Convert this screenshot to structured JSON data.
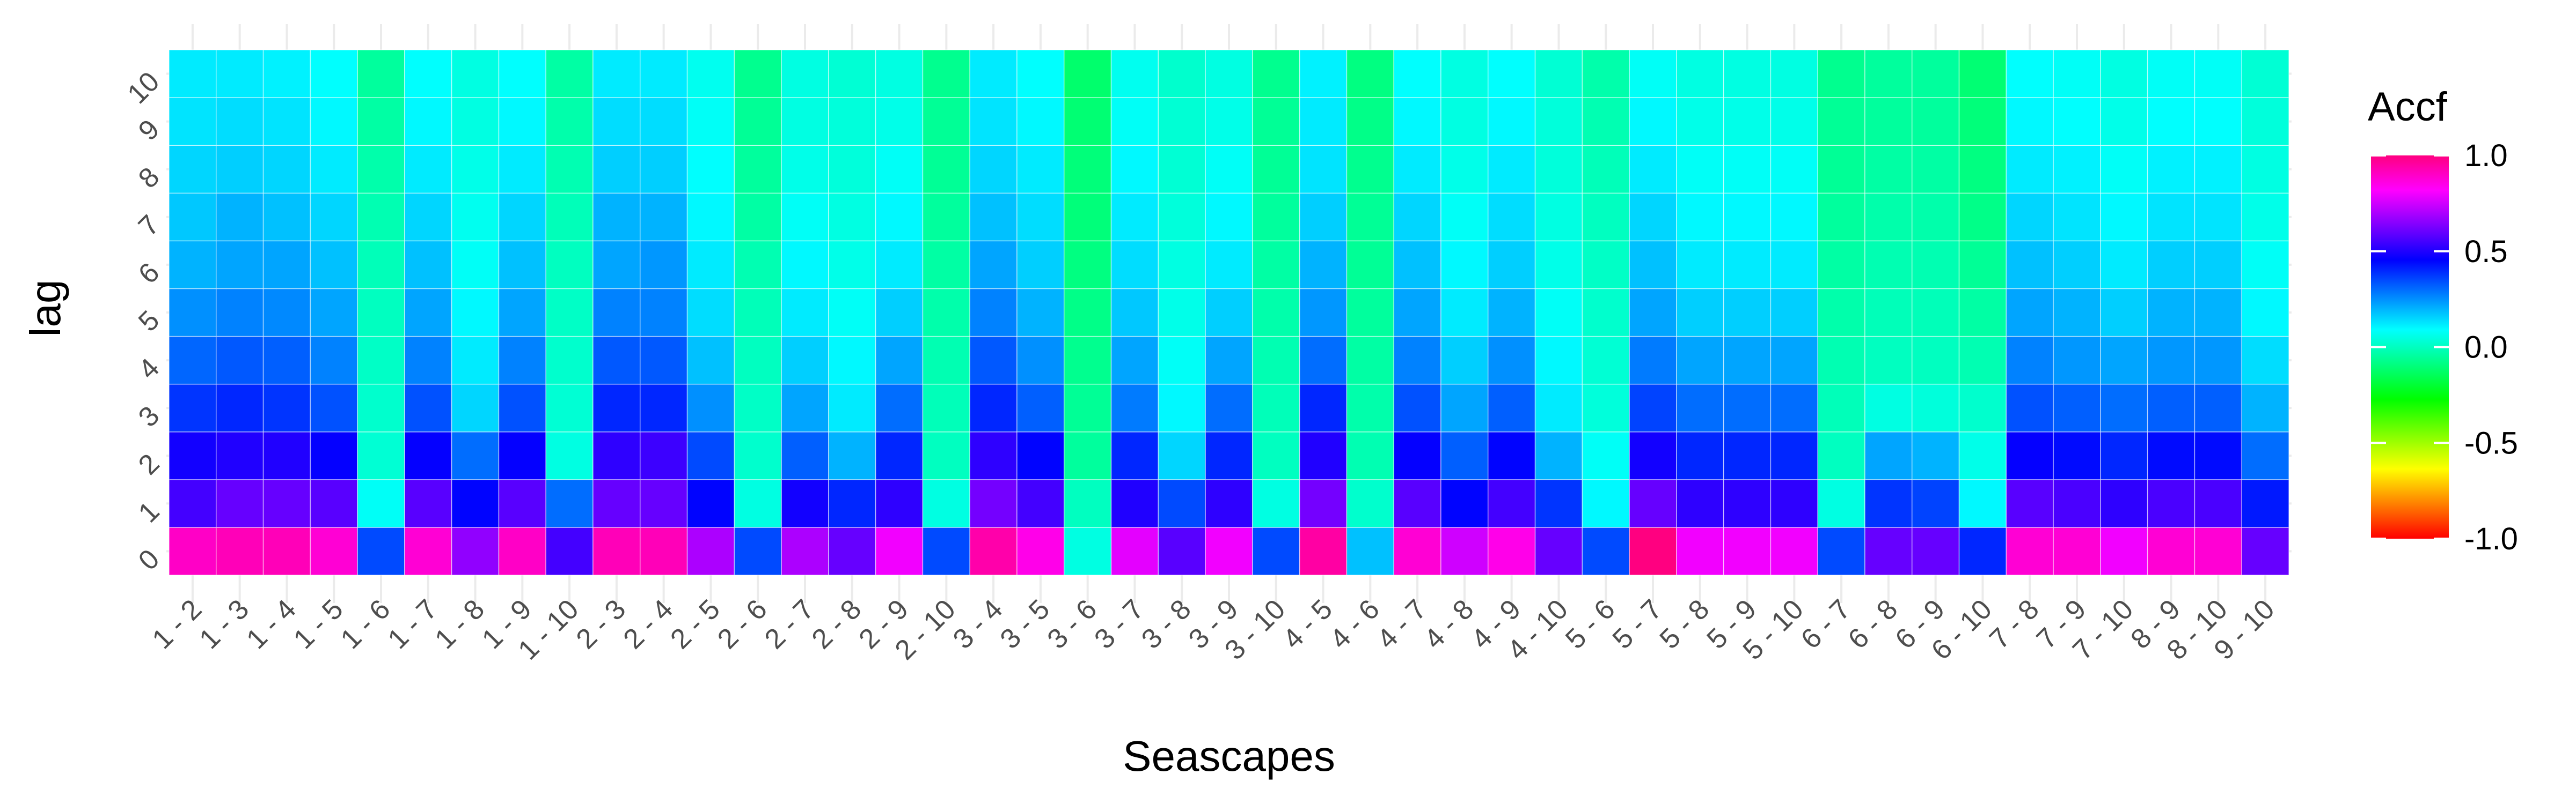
{
  "chart_data": {
    "type": "heatmap",
    "xlabel": "Seascapes",
    "ylabel": "lag",
    "x": [
      "1 - 2",
      "1 - 3",
      "1 - 4",
      "1 - 5",
      "1 - 6",
      "1 - 7",
      "1 - 8",
      "1 - 9",
      "1 - 10",
      "2 - 3",
      "2 - 4",
      "2 - 5",
      "2 - 6",
      "2 - 7",
      "2 - 8",
      "2 - 9",
      "2 - 10",
      "3 - 4",
      "3 - 5",
      "3 - 6",
      "3 - 7",
      "3 - 8",
      "3 - 9",
      "3 - 10",
      "4 - 5",
      "4 - 6",
      "4 - 7",
      "4 - 8",
      "4 - 9",
      "4 - 10",
      "5 - 6",
      "5 - 7",
      "5 - 8",
      "5 - 9",
      "5 - 10",
      "6 - 7",
      "6 - 8",
      "6 - 9",
      "6 - 10",
      "7 - 8",
      "7 - 9",
      "7 - 10",
      "8 - 9",
      "8 - 10",
      "9 - 10"
    ],
    "y": [
      "0",
      "1",
      "2",
      "3",
      "4",
      "5",
      "6",
      "7",
      "8",
      "9",
      "10"
    ],
    "z": [
      [
        0.9,
        0.55,
        0.48,
        0.38,
        0.31,
        0.25,
        0.2,
        0.17,
        0.15,
        0.13,
        0.12
      ],
      [
        0.92,
        0.6,
        0.5,
        0.4,
        0.33,
        0.27,
        0.22,
        0.2,
        0.16,
        0.14,
        0.12
      ],
      [
        0.92,
        0.6,
        0.5,
        0.38,
        0.32,
        0.26,
        0.22,
        0.18,
        0.15,
        0.13,
        0.11
      ],
      [
        0.88,
        0.58,
        0.46,
        0.34,
        0.27,
        0.22,
        0.18,
        0.15,
        0.12,
        0.1,
        0.09
      ],
      [
        0.35,
        0.08,
        0.03,
        0.02,
        0.01,
        0.0,
        -0.01,
        -0.02,
        -0.03,
        -0.04,
        -0.05
      ],
      [
        0.88,
        0.58,
        0.46,
        0.34,
        0.27,
        0.22,
        0.18,
        0.15,
        0.12,
        0.1,
        0.09
      ],
      [
        0.66,
        0.45,
        0.3,
        0.15,
        0.12,
        0.1,
        0.08,
        0.07,
        0.06,
        0.05,
        0.05
      ],
      [
        0.9,
        0.58,
        0.46,
        0.34,
        0.27,
        0.22,
        0.18,
        0.15,
        0.12,
        0.1,
        0.09
      ],
      [
        0.55,
        0.3,
        0.05,
        0.03,
        0.02,
        0.01,
        0.0,
        -0.01,
        -0.02,
        -0.03,
        -0.04
      ],
      [
        0.92,
        0.6,
        0.52,
        0.4,
        0.33,
        0.27,
        0.22,
        0.2,
        0.16,
        0.14,
        0.12
      ],
      [
        0.92,
        0.6,
        0.54,
        0.4,
        0.33,
        0.27,
        0.24,
        0.2,
        0.16,
        0.14,
        0.12
      ],
      [
        0.7,
        0.45,
        0.35,
        0.25,
        0.18,
        0.14,
        0.12,
        0.1,
        0.09,
        0.08,
        0.07
      ],
      [
        0.35,
        0.05,
        0.02,
        0.01,
        0.0,
        -0.01,
        -0.02,
        -0.04,
        -0.05,
        -0.06,
        -0.07
      ],
      [
        0.7,
        0.48,
        0.32,
        0.22,
        0.16,
        0.12,
        0.1,
        0.08,
        0.06,
        0.05,
        0.05
      ],
      [
        0.6,
        0.4,
        0.2,
        0.12,
        0.1,
        0.08,
        0.06,
        0.05,
        0.04,
        0.04,
        0.03
      ],
      [
        0.8,
        0.52,
        0.4,
        0.3,
        0.22,
        0.16,
        0.12,
        0.1,
        0.08,
        0.06,
        0.05
      ],
      [
        0.35,
        0.05,
        0.0,
        -0.01,
        -0.02,
        -0.03,
        -0.04,
        -0.05,
        -0.06,
        -0.06,
        -0.07
      ],
      [
        0.94,
        0.62,
        0.52,
        0.4,
        0.33,
        0.27,
        0.22,
        0.18,
        0.15,
        0.13,
        0.12
      ],
      [
        0.85,
        0.55,
        0.45,
        0.32,
        0.25,
        0.2,
        0.16,
        0.14,
        0.12,
        0.1,
        0.09
      ],
      [
        0.05,
        0.0,
        -0.05,
        -0.06,
        -0.07,
        -0.08,
        -0.09,
        -0.1,
        -0.1,
        -0.11,
        -0.12
      ],
      [
        0.78,
        0.5,
        0.4,
        0.28,
        0.22,
        0.17,
        0.14,
        0.12,
        0.1,
        0.08,
        0.07
      ],
      [
        0.58,
        0.35,
        0.15,
        0.1,
        0.08,
        0.06,
        0.05,
        0.04,
        0.03,
        0.03,
        0.02
      ],
      [
        0.8,
        0.52,
        0.4,
        0.3,
        0.22,
        0.16,
        0.12,
        0.1,
        0.08,
        0.06,
        0.05
      ],
      [
        0.35,
        0.05,
        0.0,
        -0.01,
        -0.02,
        -0.03,
        -0.04,
        -0.05,
        -0.06,
        -0.06,
        -0.07
      ],
      [
        0.95,
        0.62,
        0.5,
        0.4,
        0.3,
        0.24,
        0.2,
        0.16,
        0.13,
        0.12,
        0.11
      ],
      [
        0.18,
        0.02,
        -0.02,
        -0.03,
        -0.04,
        -0.05,
        -0.06,
        -0.06,
        -0.07,
        -0.08,
        -0.09
      ],
      [
        0.88,
        0.58,
        0.46,
        0.34,
        0.27,
        0.22,
        0.18,
        0.15,
        0.12,
        0.1,
        0.09
      ],
      [
        0.75,
        0.45,
        0.32,
        0.22,
        0.16,
        0.12,
        0.1,
        0.08,
        0.06,
        0.05,
        0.05
      ],
      [
        0.85,
        0.55,
        0.45,
        0.32,
        0.25,
        0.2,
        0.16,
        0.14,
        0.12,
        0.1,
        0.09
      ],
      [
        0.6,
        0.38,
        0.2,
        0.12,
        0.1,
        0.08,
        0.06,
        0.05,
        0.04,
        0.04,
        0.03
      ],
      [
        0.35,
        0.1,
        0.08,
        0.04,
        0.03,
        0.02,
        0.01,
        0.0,
        -0.01,
        -0.02,
        -0.03
      ],
      [
        1.0,
        0.6,
        0.48,
        0.36,
        0.28,
        0.22,
        0.18,
        0.15,
        0.12,
        0.1,
        0.08
      ],
      [
        0.8,
        0.52,
        0.4,
        0.3,
        0.22,
        0.16,
        0.12,
        0.1,
        0.08,
        0.06,
        0.05
      ],
      [
        0.8,
        0.52,
        0.4,
        0.3,
        0.22,
        0.16,
        0.12,
        0.1,
        0.08,
        0.06,
        0.05
      ],
      [
        0.8,
        0.52,
        0.4,
        0.3,
        0.22,
        0.16,
        0.12,
        0.1,
        0.08,
        0.06,
        0.05
      ],
      [
        0.35,
        0.05,
        0.0,
        -0.01,
        -0.02,
        -0.03,
        -0.04,
        -0.05,
        -0.06,
        -0.06,
        -0.07
      ],
      [
        0.6,
        0.38,
        0.22,
        0.05,
        0.0,
        -0.01,
        -0.02,
        -0.03,
        -0.04,
        -0.05,
        -0.05
      ],
      [
        0.6,
        0.36,
        0.2,
        0.04,
        0.0,
        -0.01,
        -0.02,
        -0.03,
        -0.04,
        -0.05,
        -0.05
      ],
      [
        0.4,
        0.1,
        0.06,
        0.02,
        -0.02,
        -0.04,
        -0.06,
        -0.08,
        -0.09,
        -0.1,
        -0.11
      ],
      [
        0.88,
        0.58,
        0.46,
        0.34,
        0.27,
        0.22,
        0.18,
        0.15,
        0.12,
        0.1,
        0.09
      ],
      [
        0.88,
        0.56,
        0.44,
        0.32,
        0.24,
        0.2,
        0.16,
        0.13,
        0.11,
        0.09,
        0.08
      ],
      [
        0.8,
        0.52,
        0.4,
        0.3,
        0.22,
        0.16,
        0.12,
        0.1,
        0.08,
        0.06,
        0.05
      ],
      [
        0.88,
        0.56,
        0.44,
        0.32,
        0.24,
        0.2,
        0.16,
        0.13,
        0.11,
        0.09,
        0.08
      ],
      [
        0.88,
        0.56,
        0.44,
        0.32,
        0.24,
        0.2,
        0.16,
        0.13,
        0.11,
        0.09,
        0.08
      ],
      [
        0.6,
        0.42,
        0.3,
        0.2,
        0.14,
        0.1,
        0.08,
        0.06,
        0.05,
        0.04,
        0.03
      ]
    ],
    "zlim": [
      -1,
      1
    ],
    "grid": true,
    "legend": {
      "title": "Accf",
      "placement": "right",
      "ticks": [
        1.0,
        0.5,
        0.0,
        -0.5,
        -1.0
      ],
      "tick_labels": [
        "1.0",
        "0.5",
        "0.0",
        "-0.5",
        "-1.0"
      ],
      "colors": [
        "#ff0000",
        "#ff8000",
        "#ffff00",
        "#80ff00",
        "#00ff00",
        "#00ff80",
        "#00ffff",
        "#0080ff",
        "#0000ff",
        "#8000ff",
        "#ff00ff",
        "#ff0080"
      ]
    }
  }
}
